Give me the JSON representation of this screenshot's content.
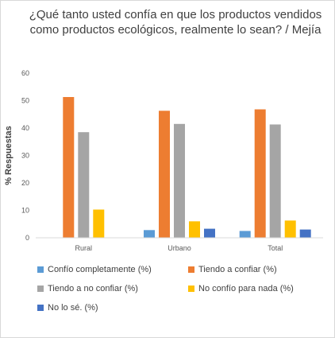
{
  "chart_data": {
    "type": "bar",
    "title": "¿Qué tanto usted confía en que los productos vendidos como productos ecológicos, realmente lo sean? / Mejía",
    "xlabel": "",
    "ylabel": "% Respuestas",
    "ylim": [
      0,
      60
    ],
    "yticks": [
      0,
      10,
      20,
      30,
      40,
      50,
      60
    ],
    "grid": false,
    "legend_position": "bottom",
    "categories": [
      "Rural",
      "Urbano",
      "Total"
    ],
    "series": [
      {
        "name": "Confío completamente (%)",
        "color": "#5b9bd5",
        "values": [
          0,
          2.8,
          2.5
        ]
      },
      {
        "name": "Tiendo a confiar (%)",
        "color": "#ed7d31",
        "values": [
          51.3,
          46.3,
          46.8
        ]
      },
      {
        "name": "Tiendo a no confiar (%)",
        "color": "#a5a5a5",
        "values": [
          38.5,
          41.5,
          41.3
        ]
      },
      {
        "name": "No confío para nada (%)",
        "color": "#ffc000",
        "values": [
          10.3,
          6.0,
          6.3
        ]
      },
      {
        "name": "No lo sé. (%)",
        "color": "#4472c4",
        "values": [
          0,
          3.3,
          3.0
        ]
      }
    ]
  }
}
